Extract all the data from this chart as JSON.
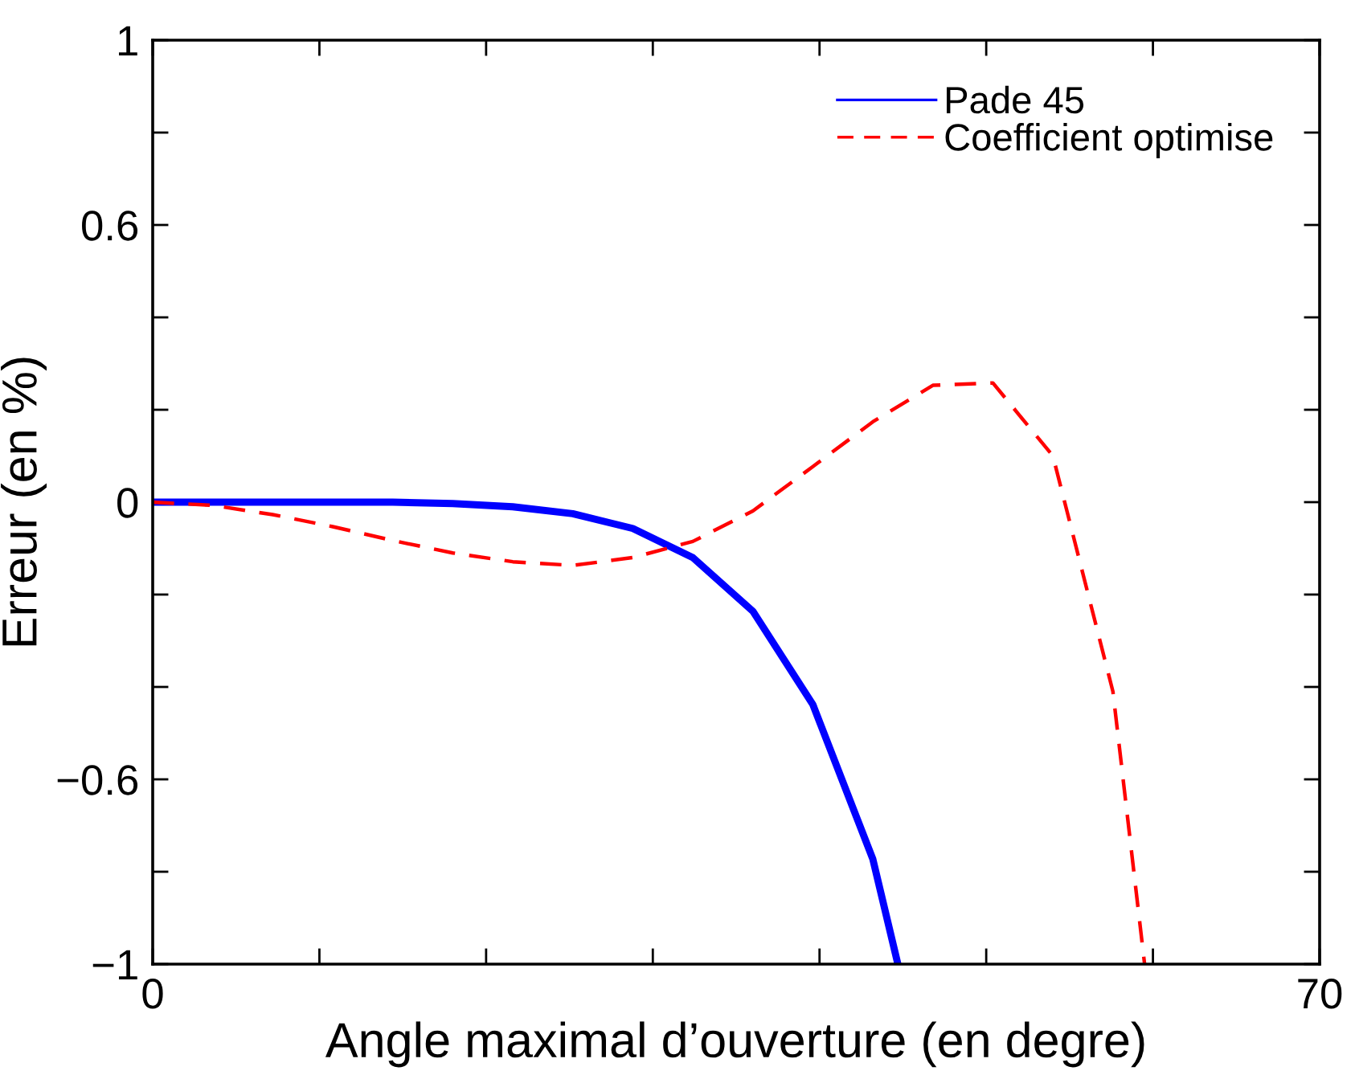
{
  "chart_data": {
    "type": "line",
    "xlabel": "Angle maximal d’ouverture (en degre)",
    "ylabel": "Erreur (en %)",
    "series": [
      {
        "name": "Pade 45",
        "color": "#0000ff",
        "line_style": "solid",
        "x": [
          0,
          3.6,
          7.2,
          10.8,
          14.4,
          18,
          21.6,
          25.2,
          28.8,
          32.4,
          36,
          39.6,
          43.2,
          44.7
        ],
        "values": [
          0,
          0,
          0,
          0,
          0,
          -0.003,
          -0.01,
          -0.025,
          -0.057,
          -0.12,
          -0.236,
          -0.438,
          -0.773,
          -1
        ]
      },
      {
        "name": "Coefficient optimise",
        "color": "#ff0000",
        "line_style": "dashed",
        "x": [
          0,
          3.6,
          7.2,
          10.8,
          14.4,
          18,
          21.6,
          25.2,
          28.8,
          32.4,
          36,
          39.6,
          43.2,
          46.8,
          50.4,
          54,
          57.6,
          59.5
        ],
        "values": [
          0,
          -0.007,
          -0.027,
          -0.053,
          -0.083,
          -0.11,
          -0.129,
          -0.137,
          -0.12,
          -0.085,
          -0.019,
          0.077,
          0.174,
          0.253,
          0.258,
          0.1,
          -0.41,
          -1
        ]
      }
    ],
    "xlim": [
      0,
      70
    ],
    "ylim": [
      -1,
      1
    ],
    "xticks": [
      0,
      {
        "value": 10,
        "label": null
      },
      {
        "value": 20,
        "label": null
      },
      {
        "value": 30,
        "label": null
      },
      {
        "value": 40,
        "label": null
      },
      {
        "value": 50,
        "label": null
      },
      {
        "value": 60,
        "label": null
      },
      70
    ],
    "yticks": [
      {
        "value": -1,
        "label": "−1"
      },
      {
        "value": -0.8,
        "label": null
      },
      {
        "value": -0.6,
        "label": "−0.6"
      },
      {
        "value": -0.4,
        "label": null
      },
      {
        "value": -0.2,
        "label": null
      },
      0,
      {
        "value": 0.2,
        "label": null
      },
      {
        "value": 0.4,
        "label": null
      },
      0.6,
      {
        "value": 0.8,
        "label": null
      },
      1
    ],
    "legend": "top right",
    "grid": false
  }
}
